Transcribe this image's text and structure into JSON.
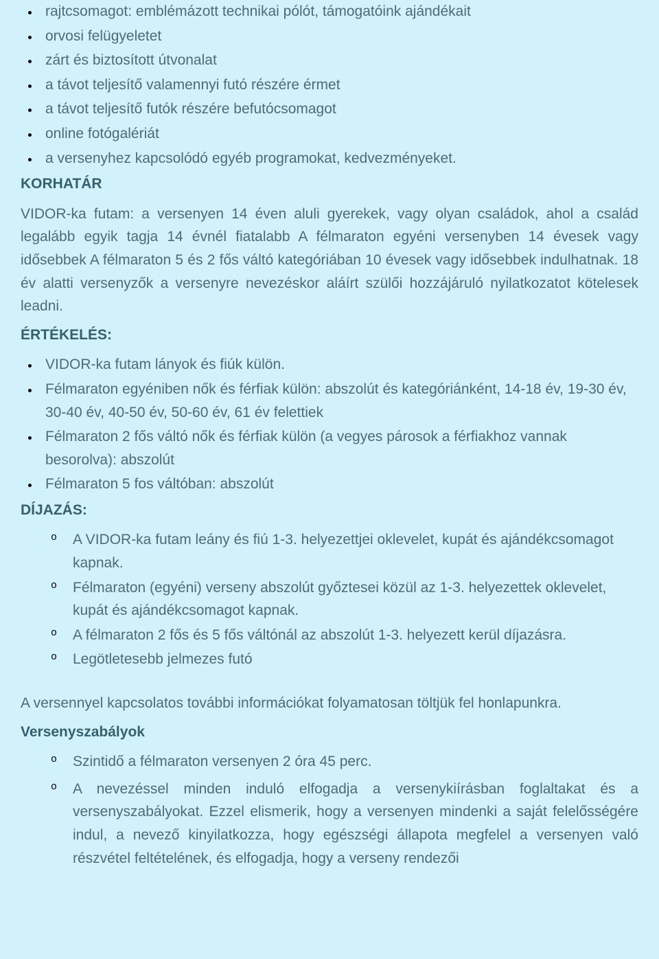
{
  "colors": {
    "background": "#d2f2fb",
    "text": "#4a6b7a",
    "heading": "#365f70",
    "bullet": "#000000"
  },
  "typography": {
    "font_family": "Arial",
    "body_fontsize_pt": 16,
    "heading_fontweight": "bold",
    "line_height": 1.6
  },
  "list1": {
    "items": [
      "rajtcsomagot: emblémázott technikai pólót, támogatóink ajándékait",
      "orvosi felügyeletet",
      "zárt és biztosított útvonalat",
      "a távot teljesítő valamennyi futó részére érmet",
      "a távot teljesítő futók részére befutócsomagot",
      "online fotógalériát",
      "a versenyhez kapcsolódó egyéb programokat, kedvezményeket."
    ]
  },
  "heading_korhatar": "KORHATÁR",
  "para_korhatar": "VIDOR-ka futam: a versenyen 14 éven aluli gyerekek, vagy olyan családok, ahol a család legalább egyik tagja 14 évnél fiatalabb A félmaraton egyéni versenyben 14 évesek vagy idősebbek A félmaraton 5 és 2 fős váltó kategóriában 10 évesek vagy idősebbek indulhatnak. 18 év alatti versenyzők a versenyre nevezéskor aláírt szülői hozzájáruló nyilatkozatot kötelesek leadni.",
  "heading_ertekeles": "ÉRTÉKELÉS:",
  "list_ertekeles": {
    "items": [
      "VIDOR-ka futam lányok és fiúk külön.",
      "Félmaraton egyéniben nők és férfiak külön: abszolút és kategóriánként, 14-18 év, 19-30 év, 30-40 év, 40-50 év, 50-60 év, 61 év felettiek",
      "Félmaraton 2 fős váltó nők és férfiak külön (a vegyes párosok a férfiakhoz vannak besorolva): abszolút",
      "Félmaraton 5 fos váltóban:  abszolút"
    ]
  },
  "heading_dijazas": "DÍJAZÁS:",
  "list_dijazas": {
    "items": [
      "A VIDOR-ka futam leány és fiú 1-3. helyezettjei oklevelet, kupát és ajándékcsomagot kapnak.",
      "Félmaraton (egyéni) verseny abszolút győztesei közül az 1-3. helyezettek oklevelet, kupát és ajándékcsomagot kapnak.",
      "A félmaraton 2 fős és 5 fős váltónál az abszolút 1-3. helyezett kerül díjazásra.",
      "Legötletesebb jelmezes futó"
    ]
  },
  "para_info": "A versennyel kapcsolatos további információkat folyamatosan töltjük fel honlapunkra.",
  "heading_szabalyok": "Versenyszabályok",
  "list_szabalyok": {
    "items": [
      "Szintidő a félmaraton versenyen 2 óra 45 perc.",
      "A nevezéssel minden induló elfogadja a versenykiírásban foglaltakat és a versenyszabályokat. Ezzel elismerik, hogy a versenyen mindenki a saját felelősségére indul, a nevező kinyilatkozza, hogy egészségi állapota megfelel a versenyen való részvétel feltételének, és elfogadja, hogy a verseny rendezői"
    ]
  }
}
